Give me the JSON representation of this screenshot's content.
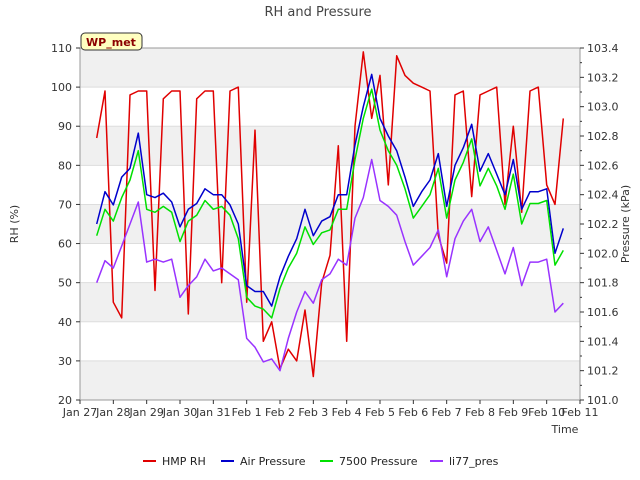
{
  "chart_data": {
    "type": "line",
    "title": "RH and Pressure",
    "xlabel": "Time",
    "ylabel": "RH (%)",
    "y2label": "Pressure (kPa)",
    "badge": "WP_met",
    "x_ticks": [
      "Jan 27",
      "Jan 28",
      "Jan 29",
      "Jan 30",
      "Jan 31",
      "Feb 1",
      "Feb 2",
      "Feb 3",
      "Feb 4",
      "Feb 5",
      "Feb 6",
      "Feb 7",
      "Feb 8",
      "Feb 9",
      "Feb 10",
      "Feb 11"
    ],
    "xlim_days": [
      0,
      15
    ],
    "ylim": [
      20,
      110
    ],
    "y_ticks": [
      20,
      30,
      40,
      50,
      60,
      70,
      80,
      90,
      100,
      110
    ],
    "y2lim": [
      101.0,
      103.4
    ],
    "y2_ticks": [
      "101.0",
      "101.2",
      "101.4",
      "101.6",
      "101.8",
      "102.0",
      "102.2",
      "102.4",
      "102.6",
      "102.8",
      "103.0",
      "103.2",
      "103.4"
    ],
    "grid": true,
    "legend_position": "bottom",
    "series": [
      {
        "name": "HMP RH",
        "axis": "left",
        "color": "#e00000",
        "x": [
          "Jan 27 12:00",
          "Jan 27 18:00",
          "Jan 28 00:00",
          "Jan 28 06:00",
          "Jan 28 12:00",
          "Jan 28 18:00",
          "Jan 29 00:00",
          "Jan 29 06:00",
          "Jan 29 12:00",
          "Jan 29 18:00",
          "Jan 30 00:00",
          "Jan 30 06:00",
          "Jan 30 12:00",
          "Jan 30 18:00",
          "Jan 31 00:00",
          "Jan 31 06:00",
          "Jan 31 12:00",
          "Jan 31 18:00",
          "Feb 1 00:00",
          "Feb 1 06:00",
          "Feb 1 12:00",
          "Feb 1 18:00",
          "Feb 2 00:00",
          "Feb 2 06:00",
          "Feb 2 12:00",
          "Feb 2 18:00",
          "Feb 3 00:00",
          "Feb 3 06:00",
          "Feb 3 12:00",
          "Feb 3 18:00",
          "Feb 4 00:00",
          "Feb 4 06:00",
          "Feb 4 12:00",
          "Feb 4 18:00",
          "Feb 5 00:00",
          "Feb 5 06:00",
          "Feb 5 12:00",
          "Feb 5 18:00",
          "Feb 6 00:00",
          "Feb 6 06:00",
          "Feb 6 12:00",
          "Feb 6 18:00",
          "Feb 7 00:00",
          "Feb 7 06:00",
          "Feb 7 12:00",
          "Feb 7 18:00",
          "Feb 8 00:00",
          "Feb 8 06:00",
          "Feb 8 12:00",
          "Feb 8 18:00",
          "Feb 9 00:00",
          "Feb 9 06:00",
          "Feb 9 12:00",
          "Feb 9 18:00",
          "Feb 10 00:00",
          "Feb 10 06:00",
          "Feb 10 12:00"
        ],
        "values": [
          87,
          99,
          45,
          41,
          98,
          99,
          99,
          48,
          97,
          99,
          99,
          42,
          97,
          99,
          99,
          50,
          99,
          100,
          45,
          89,
          35,
          40,
          28,
          33,
          30,
          43,
          26,
          50,
          57,
          85,
          35,
          90,
          109,
          92,
          103,
          75,
          108,
          103,
          101,
          100,
          99,
          62,
          55,
          98,
          99,
          72,
          98,
          99,
          100,
          70,
          90,
          68,
          99,
          100,
          75,
          70,
          92
        ]
      },
      {
        "name": "Air Pressure",
        "axis": "right",
        "color": "#0000cc",
        "x": [
          "Jan 27 12:00",
          "Jan 27 18:00",
          "Jan 28 00:00",
          "Jan 28 06:00",
          "Jan 28 12:00",
          "Jan 28 18:00",
          "Jan 29 00:00",
          "Jan 29 06:00",
          "Jan 29 12:00",
          "Jan 29 18:00",
          "Jan 30 00:00",
          "Jan 30 06:00",
          "Jan 30 12:00",
          "Jan 30 18:00",
          "Jan 31 00:00",
          "Jan 31 06:00",
          "Jan 31 12:00",
          "Jan 31 18:00",
          "Feb 1 00:00",
          "Feb 1 06:00",
          "Feb 1 12:00",
          "Feb 1 18:00",
          "Feb 2 00:00",
          "Feb 2 06:00",
          "Feb 2 12:00",
          "Feb 2 18:00",
          "Feb 3 00:00",
          "Feb 3 06:00",
          "Feb 3 12:00",
          "Feb 3 18:00",
          "Feb 4 00:00",
          "Feb 4 06:00",
          "Feb 4 12:00",
          "Feb 4 18:00",
          "Feb 5 00:00",
          "Feb 5 06:00",
          "Feb 5 12:00",
          "Feb 5 18:00",
          "Feb 6 00:00",
          "Feb 6 06:00",
          "Feb 6 12:00",
          "Feb 6 18:00",
          "Feb 7 00:00",
          "Feb 7 06:00",
          "Feb 7 12:00",
          "Feb 7 18:00",
          "Feb 8 00:00",
          "Feb 8 06:00",
          "Feb 8 12:00",
          "Feb 8 18:00",
          "Feb 9 00:00",
          "Feb 9 06:00",
          "Feb 9 12:00",
          "Feb 9 18:00",
          "Feb 10 00:00",
          "Feb 10 06:00",
          "Feb 10 12:00"
        ],
        "values": [
          102.2,
          102.42,
          102.33,
          102.52,
          102.58,
          102.82,
          102.4,
          102.38,
          102.41,
          102.35,
          102.18,
          102.3,
          102.34,
          102.44,
          102.4,
          102.4,
          102.33,
          102.2,
          101.78,
          101.74,
          101.74,
          101.64,
          101.84,
          101.98,
          102.1,
          102.3,
          102.12,
          102.22,
          102.25,
          102.4,
          102.4,
          102.74,
          103.0,
          103.22,
          102.92,
          102.8,
          102.7,
          102.52,
          102.32,
          102.42,
          102.5,
          102.68,
          102.32,
          102.6,
          102.72,
          102.88,
          102.56,
          102.68,
          102.54,
          102.4,
          102.64,
          102.3,
          102.42,
          102.42,
          102.44,
          102.0,
          102.17
        ]
      },
      {
        "name": "7500 Pressure",
        "axis": "right",
        "color": "#00e000",
        "x": [
          "Jan 27 12:00",
          "Jan 27 18:00",
          "Jan 28 00:00",
          "Jan 28 06:00",
          "Jan 28 12:00",
          "Jan 28 18:00",
          "Jan 29 00:00",
          "Jan 29 06:00",
          "Jan 29 12:00",
          "Jan 29 18:00",
          "Jan 30 00:00",
          "Jan 30 06:00",
          "Jan 30 12:00",
          "Jan 30 18:00",
          "Jan 31 00:00",
          "Jan 31 06:00",
          "Jan 31 12:00",
          "Jan 31 18:00",
          "Feb 1 00:00",
          "Feb 1 06:00",
          "Feb 1 12:00",
          "Feb 1 18:00",
          "Feb 2 00:00",
          "Feb 2 06:00",
          "Feb 2 12:00",
          "Feb 2 18:00",
          "Feb 3 00:00",
          "Feb 3 06:00",
          "Feb 3 12:00",
          "Feb 3 18:00",
          "Feb 4 00:00",
          "Feb 4 06:00",
          "Feb 4 12:00",
          "Feb 4 18:00",
          "Feb 5 00:00",
          "Feb 5 06:00",
          "Feb 5 12:00",
          "Feb 5 18:00",
          "Feb 6 00:00",
          "Feb 6 06:00",
          "Feb 6 12:00",
          "Feb 6 18:00",
          "Feb 7 00:00",
          "Feb 7 06:00",
          "Feb 7 12:00",
          "Feb 7 18:00",
          "Feb 8 00:00",
          "Feb 8 06:00",
          "Feb 8 12:00",
          "Feb 8 18:00",
          "Feb 9 00:00",
          "Feb 9 06:00",
          "Feb 9 12:00",
          "Feb 9 18:00",
          "Feb 10 00:00",
          "Feb 10 06:00",
          "Feb 10 12:00"
        ],
        "values": [
          102.12,
          102.3,
          102.22,
          102.38,
          102.5,
          102.7,
          102.3,
          102.28,
          102.32,
          102.28,
          102.08,
          102.22,
          102.26,
          102.36,
          102.3,
          102.32,
          102.26,
          102.1,
          101.7,
          101.64,
          101.62,
          101.56,
          101.76,
          101.9,
          102.0,
          102.18,
          102.06,
          102.14,
          102.16,
          102.3,
          102.3,
          102.64,
          102.92,
          103.12,
          102.84,
          102.7,
          102.6,
          102.44,
          102.24,
          102.32,
          102.4,
          102.58,
          102.24,
          102.5,
          102.62,
          102.78,
          102.46,
          102.58,
          102.46,
          102.3,
          102.54,
          102.2,
          102.34,
          102.34,
          102.36,
          101.92,
          102.02
        ]
      },
      {
        "name": "li77_pres",
        "axis": "right",
        "color": "#9933ff",
        "x": [
          "Jan 27 12:00",
          "Jan 27 18:00",
          "Jan 28 00:00",
          "Jan 28 06:00",
          "Jan 28 12:00",
          "Jan 28 18:00",
          "Jan 29 00:00",
          "Jan 29 06:00",
          "Jan 29 12:00",
          "Jan 29 18:00",
          "Jan 30 00:00",
          "Jan 30 06:00",
          "Jan 30 12:00",
          "Jan 30 18:00",
          "Jan 31 00:00",
          "Jan 31 06:00",
          "Jan 31 12:00",
          "Jan 31 18:00",
          "Feb 1 00:00",
          "Feb 1 06:00",
          "Feb 1 12:00",
          "Feb 1 18:00",
          "Feb 2 00:00",
          "Feb 2 06:00",
          "Feb 2 12:00",
          "Feb 2 18:00",
          "Feb 3 00:00",
          "Feb 3 06:00",
          "Feb 3 12:00",
          "Feb 3 18:00",
          "Feb 4 00:00",
          "Feb 4 06:00",
          "Feb 4 12:00",
          "Feb 4 18:00",
          "Feb 5 00:00",
          "Feb 5 06:00",
          "Feb 5 12:00",
          "Feb 5 18:00",
          "Feb 6 00:00",
          "Feb 6 06:00",
          "Feb 6 12:00",
          "Feb 6 18:00",
          "Feb 7 00:00",
          "Feb 7 06:00",
          "Feb 7 12:00",
          "Feb 7 18:00",
          "Feb 8 00:00",
          "Feb 8 06:00",
          "Feb 8 12:00",
          "Feb 8 18:00",
          "Feb 9 00:00",
          "Feb 9 06:00",
          "Feb 9 12:00",
          "Feb 9 18:00",
          "Feb 10 00:00",
          "Feb 10 06:00",
          "Feb 10 12:00"
        ],
        "values": [
          101.8,
          101.95,
          101.9,
          102.05,
          102.2,
          102.35,
          101.94,
          101.96,
          101.94,
          101.96,
          101.7,
          101.78,
          101.84,
          101.96,
          101.88,
          101.9,
          101.86,
          101.82,
          101.42,
          101.36,
          101.26,
          101.28,
          101.2,
          101.42,
          101.6,
          101.74,
          101.66,
          101.82,
          101.86,
          101.96,
          101.92,
          102.24,
          102.38,
          102.64,
          102.36,
          102.32,
          102.26,
          102.08,
          101.92,
          101.98,
          102.04,
          102.16,
          101.84,
          102.1,
          102.22,
          102.3,
          102.08,
          102.18,
          102.02,
          101.86,
          102.04,
          101.78,
          101.94,
          101.94,
          101.96,
          101.6,
          101.66
        ]
      }
    ]
  }
}
